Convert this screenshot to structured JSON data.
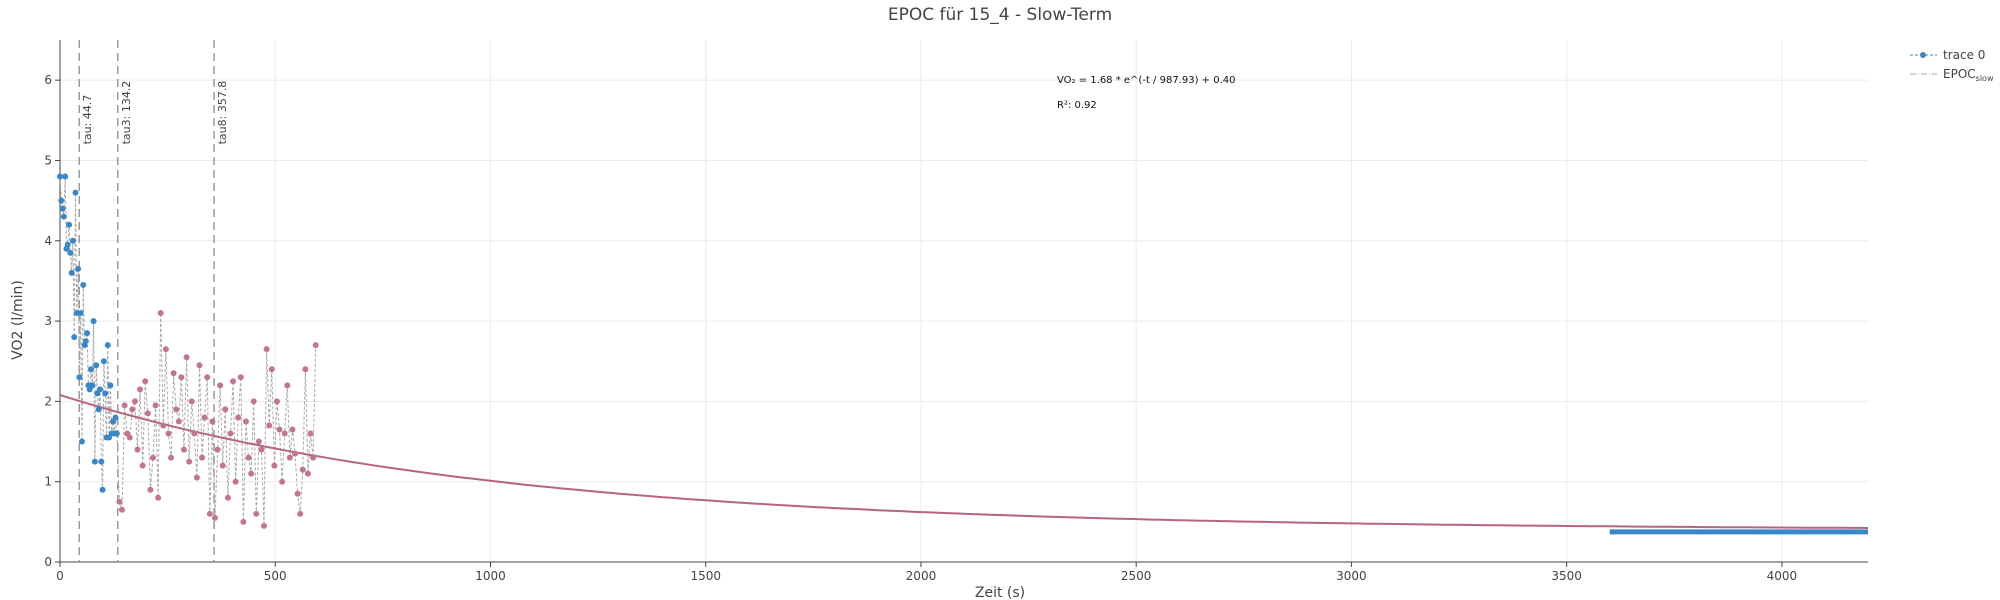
{
  "chart_data": {
    "type": "scatter",
    "title": "EPOC für 15_4 - Slow-Term",
    "xlabel": "Zeit (s)",
    "ylabel": "VO2 (l/min)",
    "xlim": [
      0,
      4200
    ],
    "ylim": [
      0,
      6.5
    ],
    "x_ticks": [
      0,
      500,
      1000,
      1500,
      2000,
      2500,
      3000,
      3500,
      4000
    ],
    "y_ticks": [
      0,
      1,
      2,
      3,
      4,
      5,
      6
    ],
    "grid": true,
    "legend_position": "top-right",
    "colors": {
      "trace0": "#3a87c8",
      "slow_points": "#c27590",
      "fit_line": "#b5657e",
      "connector": "#a8a8a8",
      "vline": "#9a9a9a"
    },
    "legend": [
      {
        "label": "trace 0",
        "style": "dots-dashed"
      },
      {
        "label_main": "EPOC",
        "label_sub": "slow",
        "style": "dash-dot"
      }
    ],
    "annotations": {
      "equation": "VO₂ = 1.68 * e^(-t / 987.93) + 0.40",
      "r_squared": "R²: 0.92"
    },
    "vlines": [
      {
        "x": 44.7,
        "label": "tau: 44.7"
      },
      {
        "x": 134.2,
        "label": "tau3: 134.2"
      },
      {
        "x": 357.8,
        "label": "tau8: 357.8"
      }
    ],
    "fit": {
      "a": 1.68,
      "tau": 987.93,
      "c": 0.4,
      "x_start": 0,
      "x_end": 4200
    },
    "series": [
      {
        "name": "trace 0",
        "x": [
          0,
          3,
          6,
          9,
          12,
          15,
          18,
          21,
          24,
          27,
          30,
          33,
          36,
          39,
          42,
          45,
          48,
          51,
          54,
          57,
          60,
          63,
          66,
          69,
          72,
          75,
          78,
          81,
          84,
          87,
          90,
          93,
          96,
          99,
          102,
          105,
          108,
          111,
          114,
          117,
          120,
          123,
          126,
          129,
          132
        ],
        "y": [
          4.8,
          4.5,
          4.4,
          4.3,
          4.8,
          3.9,
          3.95,
          4.2,
          3.85,
          3.6,
          4.0,
          2.8,
          4.6,
          3.1,
          3.65,
          2.3,
          3.1,
          1.5,
          3.45,
          2.7,
          2.75,
          2.85,
          2.2,
          2.15,
          2.4,
          2.2,
          3.0,
          1.25,
          2.45,
          2.1,
          1.9,
          2.15,
          1.25,
          0.9,
          2.5,
          2.1,
          1.55,
          2.7,
          1.55,
          2.2,
          1.6,
          1.75,
          1.6,
          1.8,
          1.6
        ]
      },
      {
        "name": "",
        "x": [
          138,
          144,
          150,
          156,
          162,
          168,
          174,
          180,
          186,
          192,
          198,
          204,
          210,
          216,
          222,
          228,
          234,
          240,
          246,
          252,
          258,
          264,
          270,
          276,
          282,
          288,
          294,
          300,
          306,
          312,
          318,
          324,
          330,
          336,
          342,
          348,
          354,
          360,
          366,
          372,
          378,
          384,
          390,
          396,
          402,
          408,
          414,
          420,
          426,
          432,
          438,
          444,
          450,
          456,
          462,
          468,
          474,
          480,
          486,
          492,
          498,
          504,
          510,
          516,
          522,
          528,
          534,
          540,
          546,
          552,
          558,
          564,
          570,
          576,
          582,
          588,
          594
        ],
        "y": [
          0.75,
          0.65,
          1.95,
          1.6,
          1.55,
          1.9,
          2.0,
          1.4,
          2.15,
          1.2,
          2.25,
          1.85,
          0.9,
          1.3,
          1.95,
          0.8,
          3.1,
          1.7,
          2.65,
          1.6,
          1.3,
          2.35,
          1.9,
          1.75,
          2.3,
          1.4,
          2.55,
          1.25,
          2.0,
          1.6,
          1.05,
          2.45,
          1.3,
          1.8,
          2.3,
          0.6,
          1.75,
          0.55,
          1.4,
          2.2,
          1.2,
          1.9,
          0.8,
          1.6,
          2.25,
          1.0,
          1.8,
          2.3,
          0.5,
          1.75,
          1.3,
          1.1,
          2.0,
          0.6,
          1.5,
          1.4,
          0.45,
          2.65,
          1.7,
          2.4,
          1.2,
          2.0,
          1.65,
          1.0,
          1.6,
          2.2,
          1.3,
          1.65,
          1.35,
          0.85,
          0.6,
          1.15,
          2.4,
          1.1,
          1.6,
          1.3,
          2.7
        ]
      },
      {
        "name": "",
        "type": "segment",
        "x": [
          3600,
          4200
        ],
        "y": [
          0.4,
          0.4
        ]
      }
    ]
  }
}
